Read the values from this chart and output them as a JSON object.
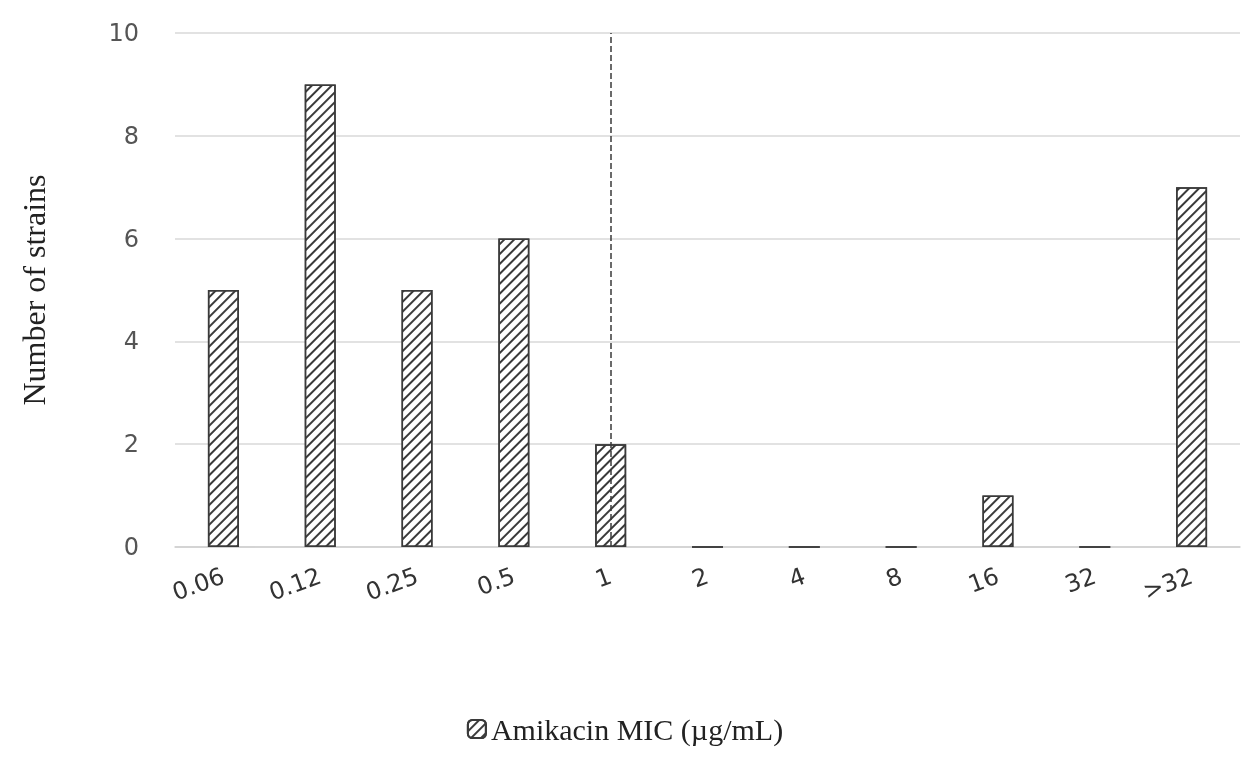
{
  "chart_data": {
    "type": "bar",
    "ylabel": "Number of strains",
    "categories": [
      "0.06",
      "0.12",
      "0.25",
      "0.5",
      "1",
      "2",
      "4",
      "8",
      "16",
      "32",
      ">32"
    ],
    "series": [
      {
        "name": "Amikacin MIC (µg/mL)",
        "color": "#3a3a3a",
        "values": [
          5,
          9,
          5,
          6,
          2,
          0,
          0,
          0,
          1,
          0,
          7
        ]
      }
    ],
    "ylim": [
      0,
      10
    ],
    "yticks": [
      0,
      2,
      4,
      6,
      8,
      10
    ],
    "grid": "y",
    "legend": "bottom",
    "ref_lines": [
      {
        "axis": "x",
        "value": "1",
        "label": null,
        "color": "#3a3a3a",
        "line_style": "dashed"
      }
    ]
  }
}
